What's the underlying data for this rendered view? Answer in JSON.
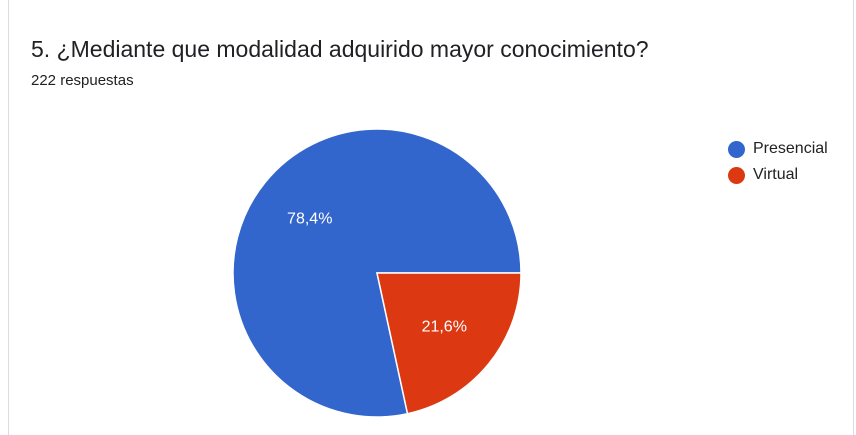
{
  "header": {
    "title": "5. ¿Mediante que modalidad adquirido mayor conocimiento?",
    "response_count": "222 respuestas"
  },
  "chart_data": {
    "type": "pie",
    "title": "5. ¿Mediante que modalidad adquirido mayor conocimiento?",
    "subtitle": "222 respuestas",
    "categories": [
      "Presencial",
      "Virtual"
    ],
    "values": [
      78.4,
      21.6
    ],
    "labels": [
      "78,4%",
      "21,6%"
    ],
    "colors": [
      "#3366cc",
      "#dc3912"
    ],
    "legend_position": "right"
  }
}
